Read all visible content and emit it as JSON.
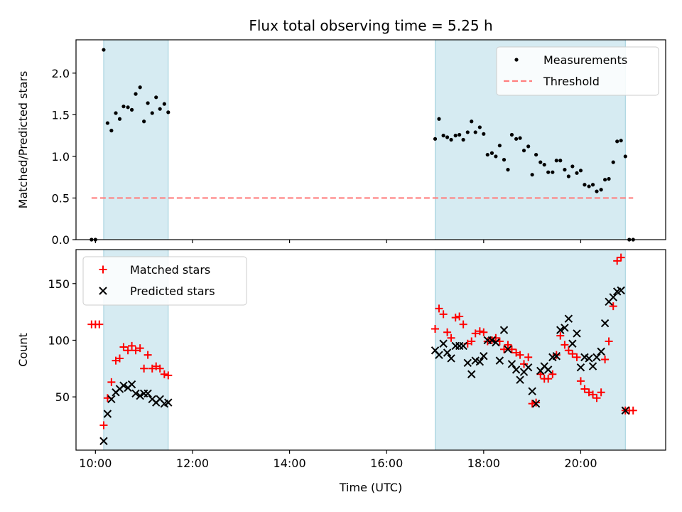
{
  "chart_data": [
    {
      "type": "scatter",
      "title": "Flux total observing time = 5.25 h",
      "xlabel": "",
      "ylabel": "Matched/Predicted stars",
      "xlim": [
        9.6,
        21.75
      ],
      "ylim": [
        0.0,
        2.4
      ],
      "yticks": [
        0.0,
        0.5,
        1.0,
        1.5,
        2.0
      ],
      "ytick_labels": [
        "0.0",
        "0.5",
        "1.0",
        "1.5",
        "2.0"
      ],
      "xticks": [
        10,
        12,
        14,
        16,
        18,
        20
      ],
      "shaded_intervals": [
        [
          10.17,
          11.5
        ],
        [
          17.0,
          20.92
        ]
      ],
      "threshold": {
        "value": 0.5,
        "x_from": 9.92,
        "x_to": 21.08,
        "color": "#ff7f7f"
      },
      "legend": {
        "position": "top-right",
        "entries": [
          "Measurements",
          "Threshold"
        ]
      },
      "series": [
        {
          "name": "Measurements",
          "color": "#000000",
          "marker": "dot",
          "points": [
            [
              9.92,
              0.0
            ],
            [
              10.0,
              0.0
            ],
            [
              10.17,
              2.28
            ],
            [
              10.25,
              1.4
            ],
            [
              10.33,
              1.31
            ],
            [
              10.42,
              1.52
            ],
            [
              10.5,
              1.45
            ],
            [
              10.58,
              1.6
            ],
            [
              10.67,
              1.59
            ],
            [
              10.75,
              1.56
            ],
            [
              10.83,
              1.75
            ],
            [
              10.92,
              1.83
            ],
            [
              11.0,
              1.42
            ],
            [
              11.08,
              1.64
            ],
            [
              11.17,
              1.52
            ],
            [
              11.25,
              1.71
            ],
            [
              11.33,
              1.57
            ],
            [
              11.42,
              1.63
            ],
            [
              11.5,
              1.53
            ],
            [
              17.0,
              1.21
            ],
            [
              17.08,
              1.45
            ],
            [
              17.17,
              1.25
            ],
            [
              17.25,
              1.23
            ],
            [
              17.33,
              1.2
            ],
            [
              17.42,
              1.25
            ],
            [
              17.5,
              1.26
            ],
            [
              17.58,
              1.2
            ],
            [
              17.67,
              1.29
            ],
            [
              17.75,
              1.42
            ],
            [
              17.83,
              1.29
            ],
            [
              17.92,
              1.35
            ],
            [
              18.0,
              1.27
            ],
            [
              18.08,
              1.02
            ],
            [
              18.17,
              1.04
            ],
            [
              18.25,
              1.0
            ],
            [
              18.33,
              1.13
            ],
            [
              18.42,
              0.96
            ],
            [
              18.5,
              0.84
            ],
            [
              18.58,
              1.26
            ],
            [
              18.67,
              1.21
            ],
            [
              18.75,
              1.22
            ],
            [
              18.83,
              1.07
            ],
            [
              18.92,
              1.12
            ],
            [
              19.0,
              0.78
            ],
            [
              19.08,
              1.02
            ],
            [
              19.17,
              0.93
            ],
            [
              19.25,
              0.9
            ],
            [
              19.33,
              0.81
            ],
            [
              19.42,
              0.81
            ],
            [
              19.5,
              0.95
            ],
            [
              19.58,
              0.95
            ],
            [
              19.67,
              0.84
            ],
            [
              19.75,
              0.76
            ],
            [
              19.83,
              0.88
            ],
            [
              19.92,
              0.8
            ],
            [
              20.0,
              0.83
            ],
            [
              20.08,
              0.66
            ],
            [
              20.17,
              0.64
            ],
            [
              20.25,
              0.66
            ],
            [
              20.33,
              0.58
            ],
            [
              20.42,
              0.6
            ],
            [
              20.5,
              0.72
            ],
            [
              20.58,
              0.73
            ],
            [
              20.67,
              0.93
            ],
            [
              20.75,
              1.18
            ],
            [
              20.83,
              1.19
            ],
            [
              20.92,
              1.0
            ],
            [
              21.0,
              0.0
            ],
            [
              21.08,
              0.0
            ]
          ]
        }
      ]
    },
    {
      "type": "scatter",
      "title": "",
      "xlabel": "Time (UTC)",
      "ylabel": "Count",
      "xlim": [
        9.6,
        21.75
      ],
      "ylim": [
        3,
        180
      ],
      "yticks": [
        50,
        100,
        150
      ],
      "ytick_labels": [
        "50",
        "100",
        "150"
      ],
      "xticks": [
        10,
        12,
        14,
        16,
        18,
        20
      ],
      "xtick_labels": [
        "10:00",
        "12:00",
        "14:00",
        "16:00",
        "18:00",
        "20:00"
      ],
      "shaded_intervals": [
        [
          10.17,
          11.5
        ],
        [
          17.0,
          20.92
        ]
      ],
      "legend": {
        "position": "top-left",
        "entries": [
          "Matched stars",
          "Predicted stars"
        ]
      },
      "series": [
        {
          "name": "Matched stars",
          "color": "#ff0000",
          "marker": "plus",
          "points": [
            [
              9.92,
              114
            ],
            [
              10.0,
              114
            ],
            [
              10.08,
              114
            ],
            [
              10.17,
              25
            ],
            [
              10.25,
              49
            ],
            [
              10.33,
              63
            ],
            [
              10.42,
              82
            ],
            [
              10.5,
              84
            ],
            [
              10.58,
              94
            ],
            [
              10.67,
              91
            ],
            [
              10.75,
              95
            ],
            [
              10.83,
              91
            ],
            [
              10.92,
              93
            ],
            [
              11.0,
              75
            ],
            [
              11.08,
              87
            ],
            [
              11.17,
              75
            ],
            [
              11.25,
              77
            ],
            [
              11.33,
              75
            ],
            [
              11.42,
              70
            ],
            [
              11.5,
              69
            ],
            [
              17.0,
              110
            ],
            [
              17.08,
              128
            ],
            [
              17.17,
              123
            ],
            [
              17.25,
              107
            ],
            [
              17.33,
              102
            ],
            [
              17.42,
              120
            ],
            [
              17.5,
              121
            ],
            [
              17.58,
              114
            ],
            [
              17.67,
              97
            ],
            [
              17.75,
              99
            ],
            [
              17.83,
              106
            ],
            [
              17.92,
              108
            ],
            [
              18.0,
              107
            ],
            [
              18.08,
              99
            ],
            [
              18.17,
              100
            ],
            [
              18.25,
              102
            ],
            [
              18.33,
              99
            ],
            [
              18.42,
              92
            ],
            [
              18.5,
              96
            ],
            [
              18.58,
              92
            ],
            [
              18.67,
              89
            ],
            [
              18.75,
              87
            ],
            [
              18.83,
              79
            ],
            [
              18.92,
              85
            ],
            [
              19.0,
              44
            ],
            [
              19.08,
              45
            ],
            [
              19.17,
              70
            ],
            [
              19.25,
              66
            ],
            [
              19.33,
              66
            ],
            [
              19.42,
              70
            ],
            [
              19.5,
              87
            ],
            [
              19.58,
              104
            ],
            [
              19.67,
              96
            ],
            [
              19.75,
              91
            ],
            [
              19.83,
              88
            ],
            [
              19.92,
              85
            ],
            [
              20.0,
              64
            ],
            [
              20.08,
              57
            ],
            [
              20.17,
              54
            ],
            [
              20.25,
              52
            ],
            [
              20.33,
              49
            ],
            [
              20.42,
              54
            ],
            [
              20.5,
              83
            ],
            [
              20.58,
              99
            ],
            [
              20.67,
              130
            ],
            [
              20.75,
              170
            ],
            [
              20.83,
              173
            ],
            [
              20.92,
              38
            ],
            [
              21.0,
              38
            ],
            [
              21.08,
              38
            ]
          ]
        },
        {
          "name": "Predicted stars",
          "color": "#000000",
          "marker": "x",
          "points": [
            [
              10.17,
              11
            ],
            [
              10.25,
              35
            ],
            [
              10.33,
              48
            ],
            [
              10.42,
              54
            ],
            [
              10.5,
              57
            ],
            [
              10.58,
              60
            ],
            [
              10.67,
              58
            ],
            [
              10.75,
              61
            ],
            [
              10.83,
              53
            ],
            [
              10.92,
              51
            ],
            [
              11.0,
              53
            ],
            [
              11.08,
              53
            ],
            [
              11.17,
              48
            ],
            [
              11.25,
              45
            ],
            [
              11.33,
              48
            ],
            [
              11.42,
              44
            ],
            [
              11.5,
              45
            ],
            [
              17.0,
              91
            ],
            [
              17.08,
              87
            ],
            [
              17.17,
              97
            ],
            [
              17.25,
              89
            ],
            [
              17.33,
              84
            ],
            [
              17.42,
              95
            ],
            [
              17.5,
              95
            ],
            [
              17.58,
              95
            ],
            [
              17.67,
              80
            ],
            [
              17.75,
              70
            ],
            [
              17.83,
              82
            ],
            [
              17.92,
              81
            ],
            [
              18.0,
              86
            ],
            [
              18.08,
              100
            ],
            [
              18.17,
              100
            ],
            [
              18.25,
              98
            ],
            [
              18.33,
              82
            ],
            [
              18.42,
              109
            ],
            [
              18.5,
              92
            ],
            [
              18.58,
              79
            ],
            [
              18.67,
              74
            ],
            [
              18.75,
              65
            ],
            [
              18.83,
              72
            ],
            [
              18.92,
              76
            ],
            [
              19.0,
              55
            ],
            [
              19.08,
              44
            ],
            [
              19.17,
              73
            ],
            [
              19.25,
              77
            ],
            [
              19.33,
              74
            ],
            [
              19.42,
              85
            ],
            [
              19.5,
              86
            ],
            [
              19.58,
              109
            ],
            [
              19.67,
              111
            ],
            [
              19.75,
              119
            ],
            [
              19.83,
              97
            ],
            [
              19.92,
              106
            ],
            [
              20.0,
              76
            ],
            [
              20.08,
              85
            ],
            [
              20.17,
              84
            ],
            [
              20.25,
              77
            ],
            [
              20.33,
              85
            ],
            [
              20.42,
              90
            ],
            [
              20.5,
              115
            ],
            [
              20.58,
              134
            ],
            [
              20.67,
              138
            ],
            [
              20.75,
              143
            ],
            [
              20.83,
              144
            ],
            [
              20.92,
              38
            ]
          ]
        }
      ]
    }
  ]
}
